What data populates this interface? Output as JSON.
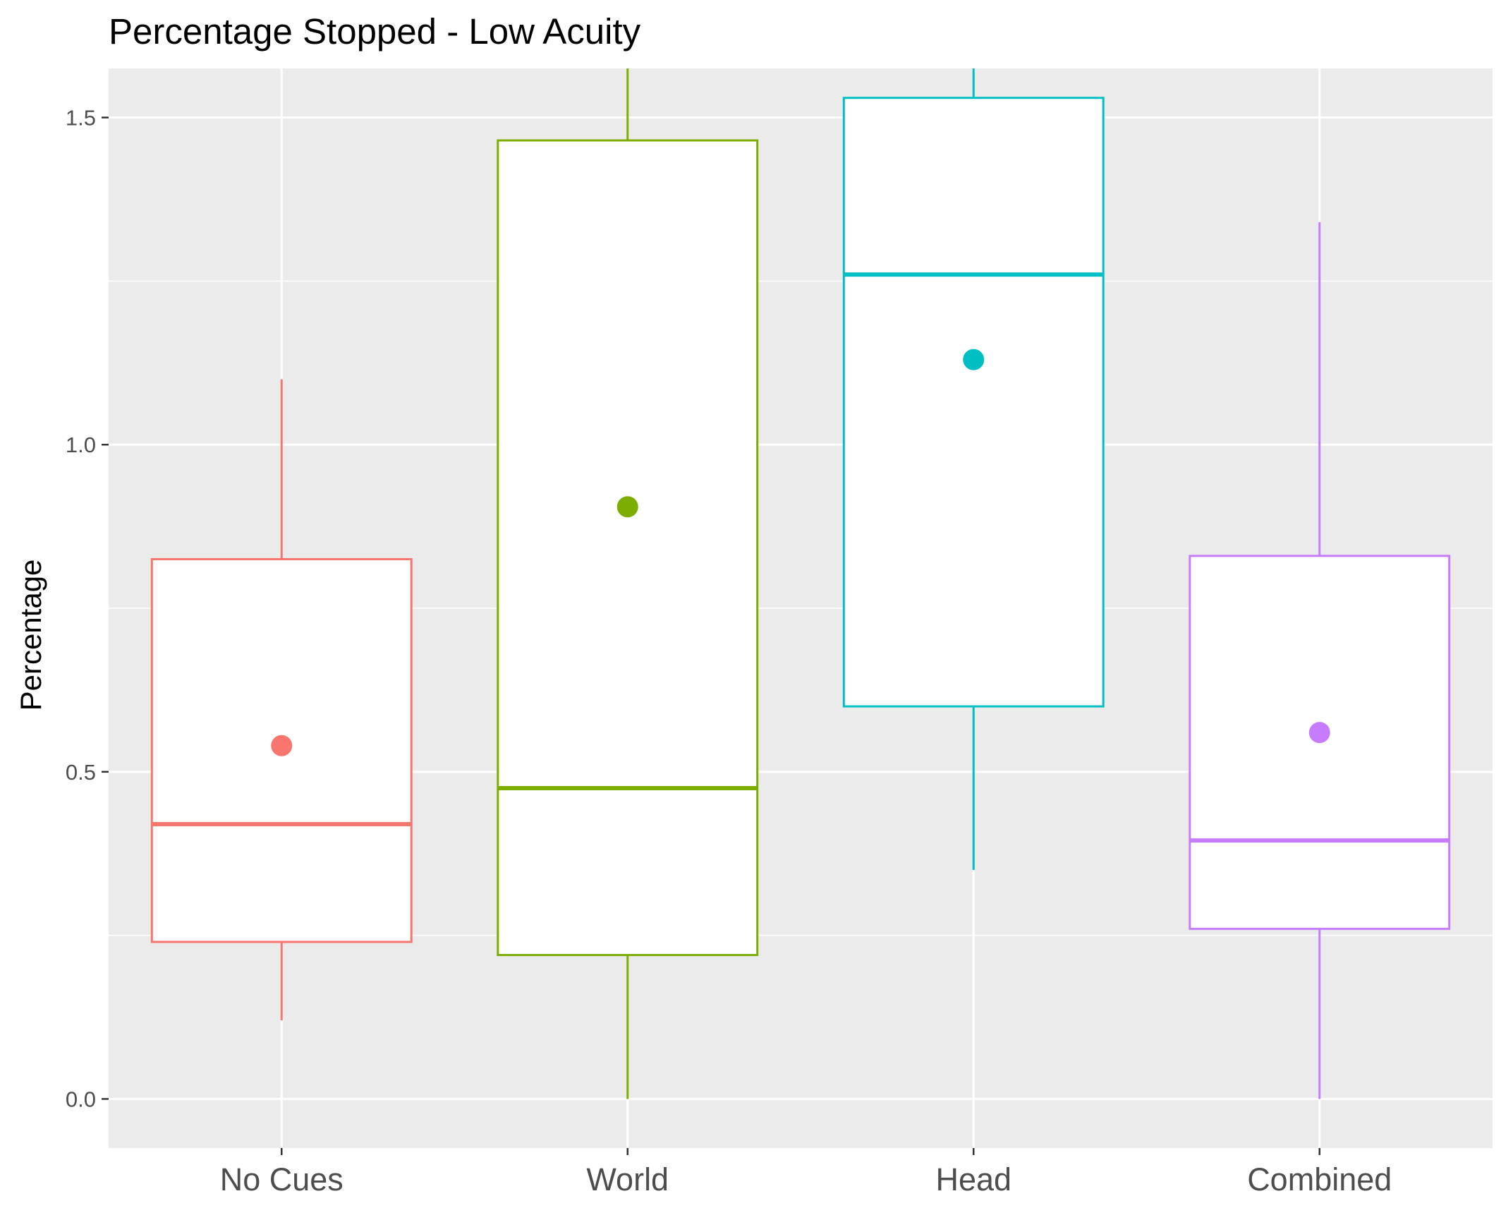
{
  "chart_data": {
    "type": "boxplot",
    "title": "Percentage Stopped - Low Acuity",
    "xlabel": "",
    "ylabel": "Percentage",
    "ylim": [
      -0.075,
      1.575
    ],
    "yticks": [
      0.0,
      0.5,
      1.0,
      1.5
    ],
    "ytick_labels": [
      "0.0",
      "0.5",
      "1.0",
      "1.5"
    ],
    "y_minor_gridlines": [
      0.25,
      0.75,
      1.25
    ],
    "grid": true,
    "legend": "none",
    "panel_background": "#ebebeb",
    "gridline_color": "#ffffff",
    "categories": [
      "No Cues",
      "World",
      "Head",
      "Combined"
    ],
    "series": [
      {
        "category": "No Cues",
        "color": "#f8766d",
        "whisker_low": 0.12,
        "q1": 0.24,
        "median": 0.42,
        "q3": 0.825,
        "whisker_high": 1.1,
        "mean": 0.54
      },
      {
        "category": "World",
        "color": "#7cae00",
        "whisker_low": 0.0,
        "q1": 0.22,
        "median": 0.475,
        "q3": 1.465,
        "whisker_high": 1.575,
        "mean": 0.905
      },
      {
        "category": "Head",
        "color": "#00bfc4",
        "whisker_low": 0.35,
        "q1": 0.6,
        "median": 1.26,
        "q3": 1.53,
        "whisker_high": 1.575,
        "mean": 1.13
      },
      {
        "category": "Combined",
        "color": "#c77cff",
        "whisker_low": 0.0,
        "q1": 0.26,
        "median": 0.395,
        "q3": 0.83,
        "whisker_high": 1.34,
        "mean": 0.56
      }
    ]
  }
}
